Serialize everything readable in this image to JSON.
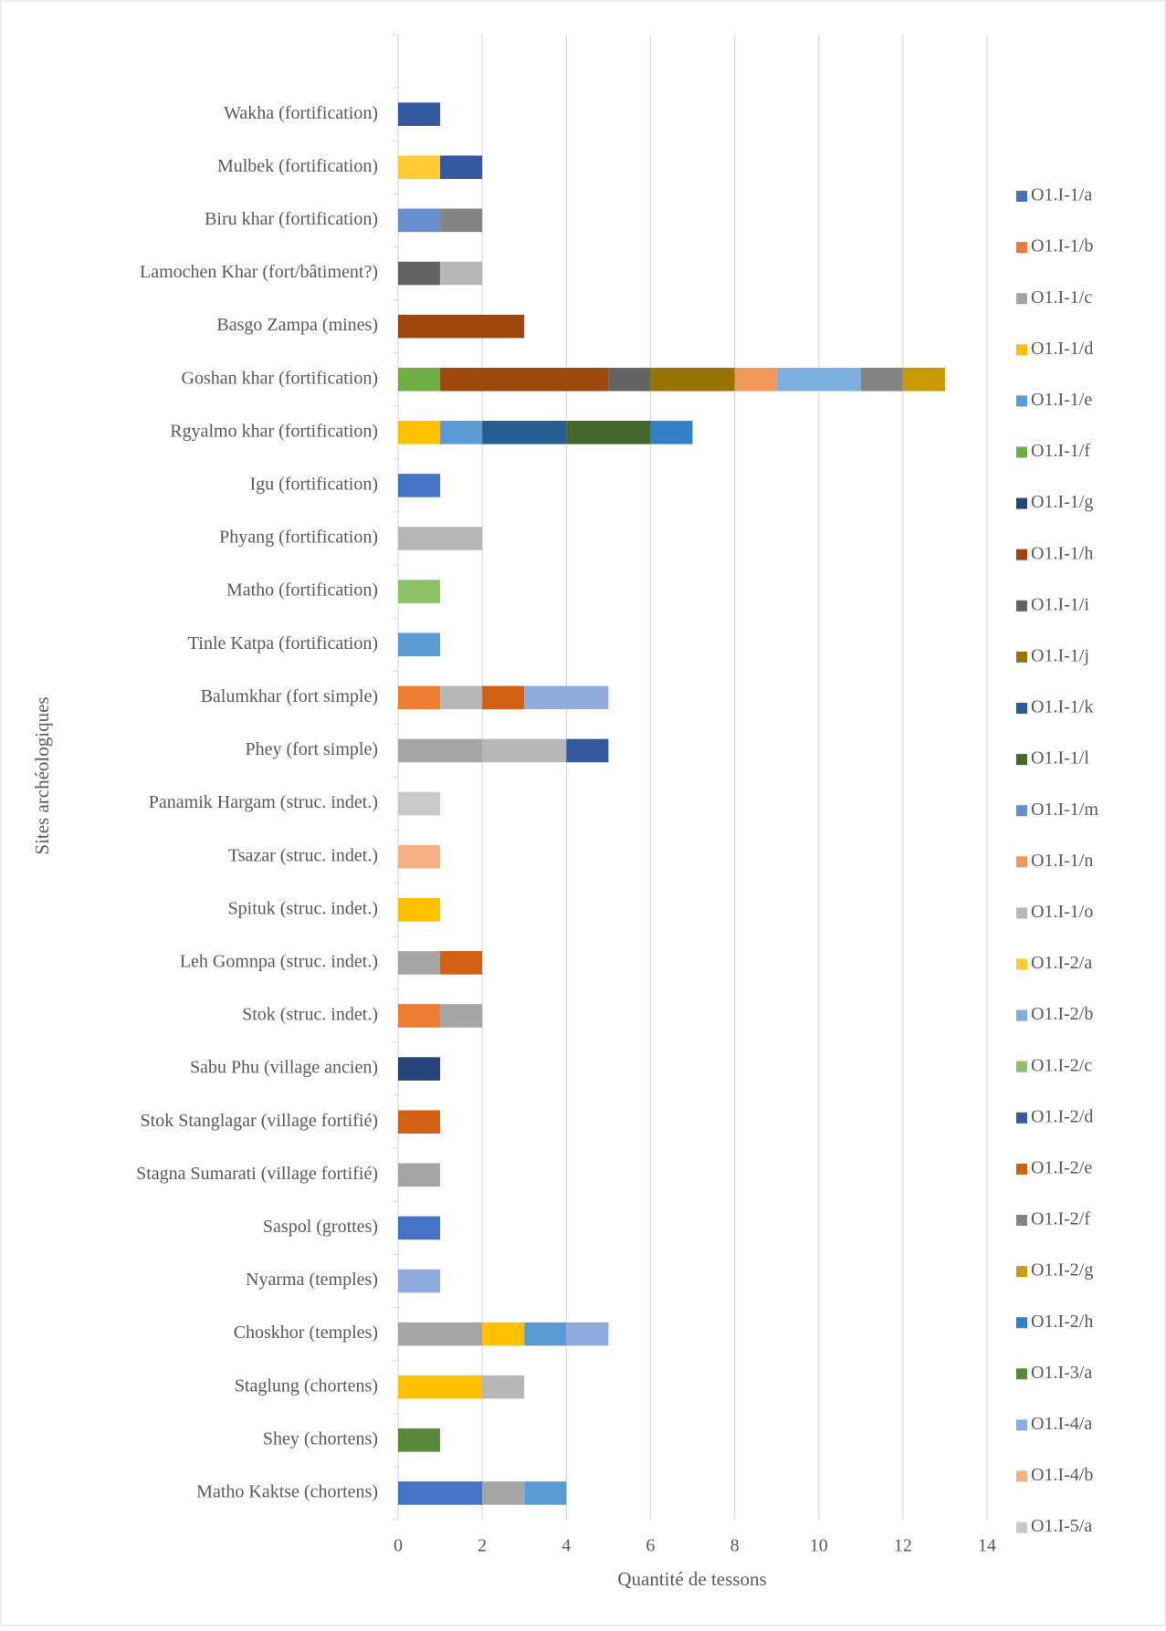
{
  "chart_data": {
    "type": "stacked_barh",
    "y_label": "Sites archéologiques",
    "x_label": "Quantité de tessons",
    "categories": [
      null,
      "Wakha (fortification)",
      "Mulbek (fortification)",
      "Biru khar (fortification)",
      "Lamochen Khar (fort/bâtiment?)",
      "Basgo Zampa (mines)",
      "Goshan khar (fortification)",
      "Rgyalmo khar (fortification)",
      "Igu (fortification)",
      "Phyang (fortification)",
      "Matho (fortification)",
      "Tinle Katpa (fortification)",
      "Balumkhar (fort simple)",
      "Phey (fort simple)",
      "Panamik Hargam (struc. indet.)",
      "Tsazar (struc. indet.)",
      "Spituk (struc. indet.)",
      "Leh Gomnpa (struc. indet.)",
      "Stok (struc. indet.)",
      "Sabu Phu (village ancien)",
      "Stok Stanglagar (village fortifié)",
      "Stagna Sumarati (village fortifié)",
      "Saspol (grottes)",
      "Nyarma (temples)",
      "Choskhor (temples)",
      "Staglung (chortens)",
      "Shey (chortens)",
      "Matho Kaktse (chortens)"
    ],
    "xlim": [
      0,
      14
    ],
    "xticks": [
      0,
      2,
      4,
      6,
      8,
      10,
      12,
      14
    ],
    "grid": true,
    "legend": "right",
    "series": [
      {
        "name": "O1.I-1/a",
        "color": "#4472c4",
        "values": [
          null,
          null,
          null,
          null,
          null,
          null,
          null,
          null,
          1,
          null,
          null,
          null,
          null,
          null,
          null,
          null,
          null,
          null,
          null,
          null,
          null,
          null,
          1,
          null,
          null,
          null,
          null,
          2
        ]
      },
      {
        "name": "O1.I-1/b",
        "color": "#ed7d31",
        "values": [
          null,
          null,
          null,
          null,
          null,
          null,
          null,
          null,
          null,
          null,
          null,
          null,
          1,
          null,
          null,
          null,
          null,
          null,
          1,
          null,
          null,
          null,
          null,
          null,
          null,
          null,
          null,
          null
        ]
      },
      {
        "name": "O1.I-1/c",
        "color": "#a5a5a5",
        "values": [
          null,
          null,
          null,
          null,
          null,
          null,
          null,
          null,
          null,
          null,
          null,
          null,
          null,
          2,
          null,
          null,
          null,
          1,
          1,
          null,
          null,
          1,
          null,
          null,
          2,
          null,
          null,
          1
        ]
      },
      {
        "name": "O1.I-1/d",
        "color": "#ffc000",
        "values": [
          null,
          null,
          null,
          null,
          null,
          null,
          null,
          1,
          null,
          null,
          null,
          null,
          null,
          null,
          null,
          null,
          1,
          null,
          null,
          null,
          null,
          null,
          null,
          null,
          1,
          2,
          null,
          null
        ]
      },
      {
        "name": "O1.I-1/e",
        "color": "#5b9bd5",
        "values": [
          null,
          null,
          null,
          null,
          null,
          null,
          null,
          1,
          null,
          null,
          null,
          1,
          null,
          null,
          null,
          null,
          null,
          null,
          null,
          null,
          null,
          null,
          null,
          null,
          1,
          null,
          null,
          1
        ]
      },
      {
        "name": "O1.I-1/f",
        "color": "#70ad47",
        "values": [
          null,
          null,
          null,
          null,
          null,
          null,
          1,
          null,
          null,
          null,
          null,
          null,
          null,
          null,
          null,
          null,
          null,
          null,
          null,
          null,
          null,
          null,
          null,
          null,
          null,
          null,
          null,
          null
        ]
      },
      {
        "name": "O1.I-1/g",
        "color": "#264478",
        "values": [
          null,
          null,
          null,
          null,
          null,
          null,
          null,
          null,
          null,
          null,
          null,
          null,
          null,
          null,
          null,
          null,
          null,
          null,
          null,
          1,
          null,
          null,
          null,
          null,
          null,
          null,
          null,
          null
        ]
      },
      {
        "name": "O1.I-1/h",
        "color": "#9e480e",
        "values": [
          null,
          null,
          null,
          null,
          null,
          3,
          4,
          null,
          null,
          null,
          null,
          null,
          null,
          null,
          null,
          null,
          null,
          null,
          null,
          null,
          null,
          null,
          null,
          null,
          null,
          null,
          null,
          null
        ]
      },
      {
        "name": "O1.I-1/i",
        "color": "#636363",
        "values": [
          null,
          null,
          null,
          null,
          1,
          null,
          1,
          null,
          null,
          null,
          null,
          null,
          null,
          null,
          null,
          null,
          null,
          null,
          null,
          null,
          null,
          null,
          null,
          null,
          null,
          null,
          null,
          null
        ]
      },
      {
        "name": "O1.I-1/j",
        "color": "#997300",
        "values": [
          null,
          null,
          null,
          null,
          null,
          null,
          2,
          null,
          null,
          null,
          null,
          null,
          null,
          null,
          null,
          null,
          null,
          null,
          null,
          null,
          null,
          null,
          null,
          null,
          null,
          null,
          null,
          null
        ]
      },
      {
        "name": "O1.I-1/k",
        "color": "#255e91",
        "values": [
          null,
          null,
          null,
          null,
          null,
          null,
          null,
          2,
          null,
          null,
          null,
          null,
          null,
          null,
          null,
          null,
          null,
          null,
          null,
          null,
          null,
          null,
          null,
          null,
          null,
          null,
          null,
          null
        ]
      },
      {
        "name": "O1.I-1/l",
        "color": "#43682b",
        "values": [
          null,
          null,
          null,
          null,
          null,
          null,
          null,
          2,
          null,
          null,
          null,
          null,
          null,
          null,
          null,
          null,
          null,
          null,
          null,
          null,
          null,
          null,
          null,
          null,
          null,
          null,
          null,
          null
        ]
      },
      {
        "name": "O1.I-1/m",
        "color": "#698ed0",
        "values": [
          null,
          null,
          null,
          1,
          null,
          null,
          null,
          null,
          null,
          null,
          null,
          null,
          null,
          null,
          null,
          null,
          null,
          null,
          null,
          null,
          null,
          null,
          null,
          null,
          null,
          null,
          null,
          null
        ]
      },
      {
        "name": "O1.I-1/n",
        "color": "#f1975a",
        "values": [
          null,
          null,
          null,
          null,
          null,
          null,
          1,
          null,
          null,
          null,
          null,
          null,
          null,
          null,
          null,
          null,
          null,
          null,
          null,
          null,
          null,
          null,
          null,
          null,
          null,
          null,
          null,
          null
        ]
      },
      {
        "name": "O1.I-1/o",
        "color": "#b7b7b7",
        "values": [
          null,
          null,
          null,
          null,
          1,
          null,
          null,
          null,
          null,
          2,
          null,
          null,
          1,
          2,
          null,
          null,
          null,
          null,
          null,
          null,
          null,
          null,
          null,
          null,
          null,
          1,
          null,
          null
        ]
      },
      {
        "name": "O1.I-2/a",
        "color": "#ffcd33",
        "values": [
          null,
          null,
          1,
          null,
          null,
          null,
          null,
          null,
          null,
          null,
          null,
          null,
          null,
          null,
          null,
          null,
          null,
          null,
          null,
          null,
          null,
          null,
          null,
          null,
          null,
          null,
          null,
          null
        ]
      },
      {
        "name": "O1.I-2/b",
        "color": "#7cafdd",
        "values": [
          null,
          null,
          null,
          null,
          null,
          null,
          2,
          null,
          null,
          null,
          null,
          null,
          null,
          null,
          null,
          null,
          null,
          null,
          null,
          null,
          null,
          null,
          null,
          null,
          null,
          null,
          null,
          null
        ]
      },
      {
        "name": "O1.I-2/c",
        "color": "#8cc168",
        "values": [
          null,
          null,
          null,
          null,
          null,
          null,
          null,
          null,
          null,
          null,
          1,
          null,
          null,
          null,
          null,
          null,
          null,
          null,
          null,
          null,
          null,
          null,
          null,
          null,
          null,
          null,
          null,
          null
        ]
      },
      {
        "name": "O1.I-2/d",
        "color": "#335aa1",
        "values": [
          null,
          1,
          1,
          null,
          null,
          null,
          null,
          null,
          null,
          null,
          null,
          null,
          null,
          1,
          null,
          null,
          null,
          null,
          null,
          null,
          null,
          null,
          null,
          null,
          null,
          null,
          null,
          null
        ]
      },
      {
        "name": "O1.I-2/e",
        "color": "#d26012",
        "values": [
          null,
          null,
          null,
          null,
          null,
          null,
          null,
          null,
          null,
          null,
          null,
          null,
          1,
          null,
          null,
          null,
          null,
          1,
          null,
          null,
          1,
          null,
          null,
          null,
          null,
          null,
          null,
          null
        ]
      },
      {
        "name": "O1.I-2/f",
        "color": "#848484",
        "values": [
          null,
          null,
          null,
          1,
          null,
          null,
          1,
          null,
          null,
          null,
          null,
          null,
          null,
          null,
          null,
          null,
          null,
          null,
          null,
          null,
          null,
          null,
          null,
          null,
          null,
          null,
          null,
          null
        ]
      },
      {
        "name": "O1.I-2/g",
        "color": "#cc9a00",
        "values": [
          null,
          null,
          null,
          null,
          null,
          null,
          1,
          null,
          null,
          null,
          null,
          null,
          null,
          null,
          null,
          null,
          null,
          null,
          null,
          null,
          null,
          null,
          null,
          null,
          null,
          null,
          null,
          null
        ]
      },
      {
        "name": "O1.I-2/h",
        "color": "#3280c8",
        "values": [
          null,
          null,
          null,
          null,
          null,
          null,
          null,
          1,
          null,
          null,
          null,
          null,
          null,
          null,
          null,
          null,
          null,
          null,
          null,
          null,
          null,
          null,
          null,
          null,
          null,
          null,
          null,
          null
        ]
      },
      {
        "name": "O1.I-3/a",
        "color": "#5a8a39",
        "values": [
          null,
          null,
          null,
          null,
          null,
          null,
          null,
          null,
          null,
          null,
          null,
          null,
          null,
          null,
          null,
          null,
          null,
          null,
          null,
          null,
          null,
          null,
          null,
          null,
          null,
          null,
          1,
          null
        ]
      },
      {
        "name": "O1.I-4/a",
        "color": "#8faadc",
        "values": [
          null,
          null,
          null,
          null,
          null,
          null,
          null,
          null,
          null,
          null,
          null,
          null,
          2,
          null,
          null,
          null,
          null,
          null,
          null,
          null,
          null,
          null,
          null,
          1,
          1,
          null,
          null,
          null
        ]
      },
      {
        "name": "O1.I-4/b",
        "color": "#f4b183",
        "values": [
          null,
          null,
          null,
          null,
          null,
          null,
          null,
          null,
          null,
          null,
          null,
          null,
          null,
          null,
          null,
          1,
          null,
          null,
          null,
          null,
          null,
          null,
          null,
          null,
          null,
          null,
          null,
          null
        ]
      },
      {
        "name": "O1.I-5/a",
        "color": "#c9c9c9",
        "values": [
          null,
          null,
          null,
          null,
          null,
          null,
          null,
          null,
          null,
          null,
          null,
          null,
          null,
          null,
          1,
          null,
          null,
          null,
          null,
          null,
          null,
          null,
          null,
          null,
          null,
          null,
          null,
          null
        ]
      }
    ]
  }
}
